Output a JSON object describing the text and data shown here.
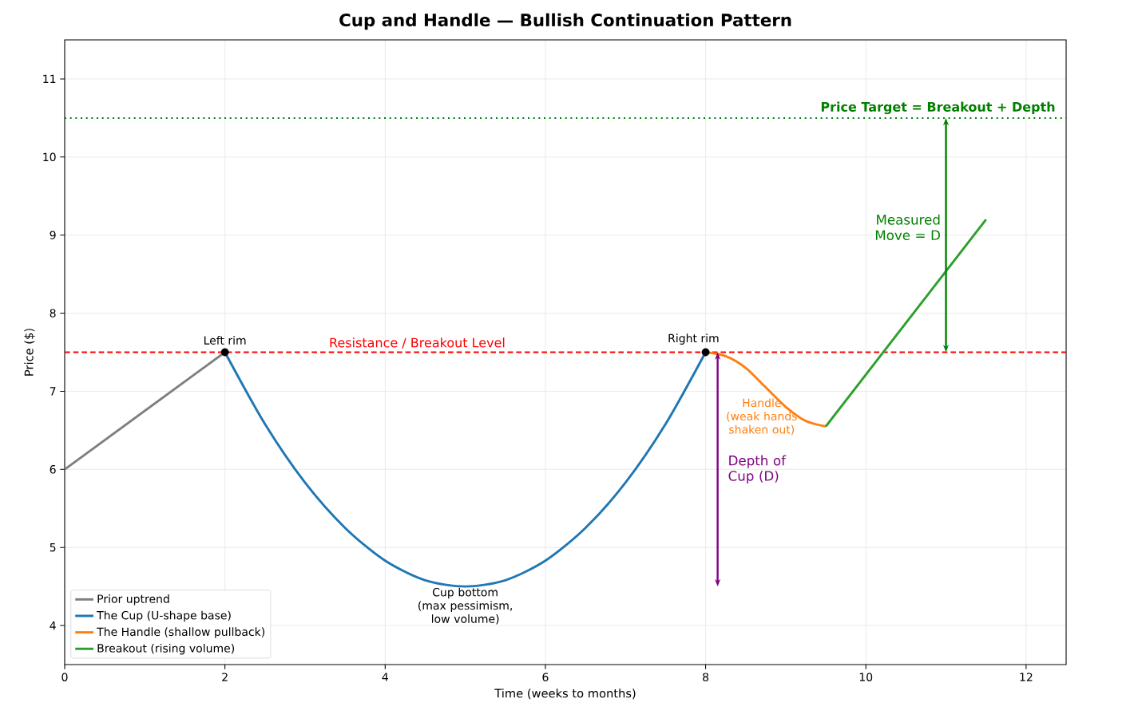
{
  "chart_data": {
    "type": "line",
    "title": "Cup and Handle — Bullish Continuation Pattern",
    "xlabel": "Time (weeks to months)",
    "ylabel": "Price ($)",
    "xlim": [
      0,
      12.5
    ],
    "ylim": [
      3.5,
      11.5
    ],
    "xticks": [
      0,
      2,
      4,
      6,
      8,
      10,
      12
    ],
    "yticks": [
      4,
      5,
      6,
      7,
      8,
      9,
      10,
      11
    ],
    "grid": true,
    "legend": "bottom left",
    "series": [
      {
        "name": "Prior uptrend",
        "color": "#7f7f7f",
        "x": [
          0,
          2
        ],
        "values": [
          6,
          7.5
        ]
      },
      {
        "name": "The Cup (U-shape base)",
        "color": "#1f77b4",
        "x": [
          2,
          2.5,
          3,
          3.5,
          4,
          4.5,
          5,
          5.5,
          6,
          6.5,
          7,
          7.5,
          8
        ],
        "values": [
          7.5,
          6.58,
          5.83,
          5.25,
          4.83,
          4.58,
          4.5,
          4.58,
          4.83,
          5.25,
          5.83,
          6.58,
          7.5
        ]
      },
      {
        "name": "The Handle (shallow pullback)",
        "color": "#ff7f0e",
        "x": [
          8,
          8.25,
          8.5,
          8.75,
          9,
          9.25,
          9.5
        ],
        "values": [
          7.5,
          7.45,
          7.3,
          7.05,
          6.8,
          6.62,
          6.55
        ]
      },
      {
        "name": "Breakout (rising volume)",
        "color": "#2ca02c",
        "x": [
          9.5,
          11.5
        ],
        "values": [
          6.55,
          9.2
        ]
      },
      {
        "type": "scatter",
        "marker": "circle",
        "color": "#000000",
        "x": [
          2,
          8
        ],
        "values": [
          7.5,
          7.5
        ]
      }
    ],
    "ref_lines": [
      {
        "axis": "y",
        "value": 7.5,
        "label": "Resistance / Breakout Level",
        "color": "#ff0000",
        "line_style": "dashed"
      },
      {
        "axis": "y",
        "value": 10.5,
        "label": "Price Target = Breakout + Depth",
        "color": "#008000",
        "line_style": "dotted"
      }
    ],
    "annotations": [
      {
        "text": "Left rim",
        "x": 2,
        "y": 7.5
      },
      {
        "text": "Right rim",
        "x": 8,
        "y": 7.5
      },
      {
        "text": "Cup bottom (max pessimism, low volume)",
        "x": 5,
        "y": 4.5
      },
      "Handle (weak hands shaken out)",
      "Depth of Cup (D)",
      "Measured Move = D"
    ]
  }
}
